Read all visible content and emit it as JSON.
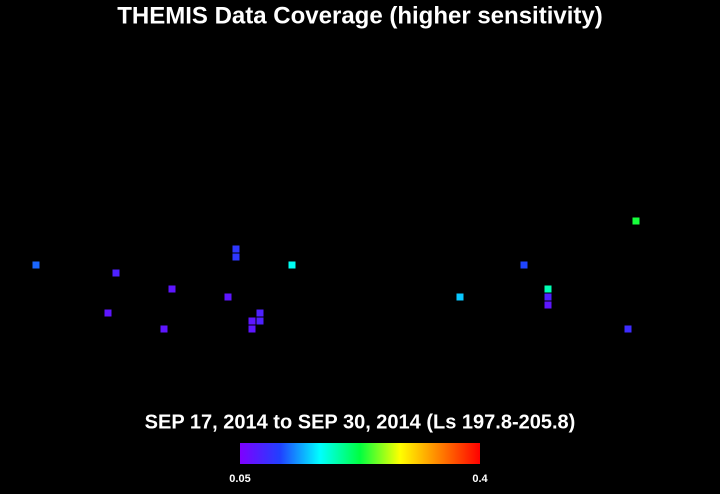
{
  "chart_data": {
    "type": "coverage-map",
    "title": "THEMIS Data Coverage (higher sensitivity)",
    "subtitle": "SEP 17, 2014 to SEP 30, 2014 (Ls 197.8-205.8)",
    "x": [
      18,
      58,
      86,
      54,
      82,
      114,
      118,
      118,
      146,
      130,
      130,
      126,
      126,
      230,
      262,
      274,
      274,
      274,
      318,
      314
    ],
    "y": [
      -19,
      -23,
      -31,
      -43,
      -51,
      -35,
      -11,
      -15,
      -19,
      -43,
      -47,
      -47,
      -51,
      -35,
      -19,
      -31,
      -35,
      -39,
      3,
      -51
    ],
    "values": [
      0.12,
      0.08,
      0.07,
      0.07,
      0.07,
      0.07,
      0.1,
      0.1,
      0.17,
      0.08,
      0.08,
      0.07,
      0.07,
      0.15,
      0.11,
      0.19,
      0.08,
      0.07,
      0.23,
      0.09
    ],
    "xlim": [
      0,
      360
    ],
    "ylim": [
      -90,
      90
    ],
    "clim": [
      0.05,
      0.4
    ],
    "cticks": [
      0.05,
      0.4
    ],
    "colormap": [
      "#7f00ff",
      "#2040ff",
      "#00ffff",
      "#00ff40",
      "#ffff00",
      "#ff8000",
      "#ff0000"
    ]
  }
}
